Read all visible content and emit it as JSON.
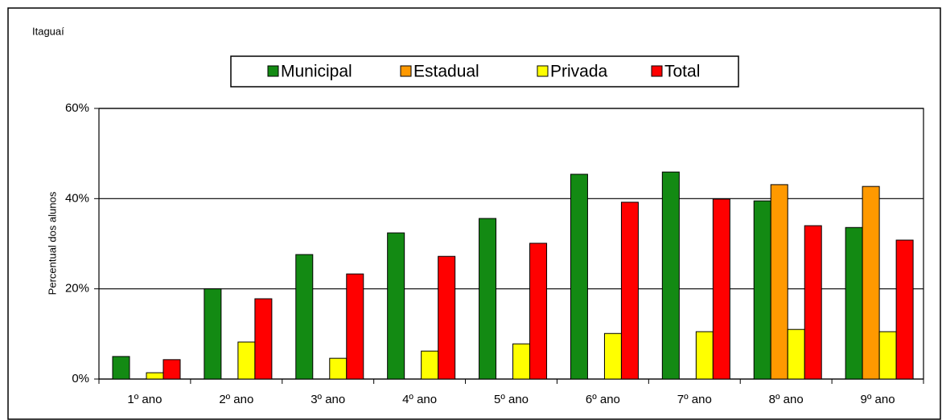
{
  "chart_data": {
    "type": "bar",
    "subtitle": "Itaguaí",
    "y_label": "Percentual dos alunos",
    "categories": [
      "1º ano",
      "2º ano",
      "3º ano",
      "4º ano",
      "5º ano",
      "6º ano",
      "7º ano",
      "8º ano",
      "9º ano"
    ],
    "series": [
      {
        "name": "Municipal",
        "color": "#138a13",
        "values": [
          5.0,
          20,
          27.6,
          32.4,
          35.6,
          45.4,
          45.9,
          39.5,
          33.6
        ]
      },
      {
        "name": "Estadual",
        "color": "#ff9900",
        "values": [
          null,
          null,
          null,
          null,
          null,
          null,
          null,
          43.1,
          42.7
        ]
      },
      {
        "name": "Privada",
        "color": "#ffff00",
        "values": [
          1.4,
          8.2,
          4.6,
          6.2,
          7.8,
          10.1,
          10.5,
          11,
          10.5
        ]
      },
      {
        "name": "Total",
        "color": "#ff0000",
        "values": [
          4.3,
          17.8,
          23.3,
          27.2,
          30.1,
          39.2,
          39.9,
          34,
          30.8
        ]
      }
    ],
    "ylim": [
      0,
      60
    ],
    "yticks": [
      {
        "value": 0,
        "label": "0%"
      },
      {
        "value": 20,
        "label": "20%"
      },
      {
        "value": 40,
        "label": "40%"
      },
      {
        "value": 60,
        "label": "60%"
      }
    ],
    "grid": true,
    "legend": "top"
  }
}
